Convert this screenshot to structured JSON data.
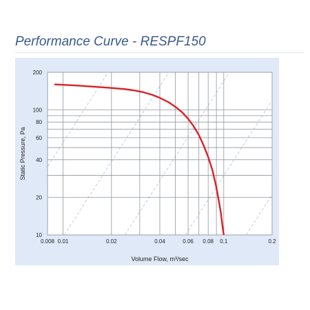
{
  "page": {
    "title": "Performance Curve - RESPF150"
  },
  "chart_data": {
    "type": "line",
    "title": "",
    "xlabel": "Volume Flow, m³/sec",
    "ylabel": "Static Pressure, Pa",
    "xscale": "log",
    "yscale": "log",
    "xlim": [
      0.008,
      0.2
    ],
    "ylim": [
      10,
      200
    ],
    "grid": true,
    "legend": "none",
    "x_ticks": [
      0.008,
      0.01,
      0.02,
      0.04,
      0.06,
      0.08,
      0.1,
      0.2
    ],
    "x_tick_labels": [
      "0.008",
      "0.01",
      "0.02",
      "0.04",
      "0.06",
      "0.08",
      "0.1",
      "0.2"
    ],
    "y_ticks": [
      10,
      20,
      40,
      60,
      80,
      100,
      200
    ],
    "y_tick_labels": [
      "10",
      "20",
      "40",
      "60",
      "80",
      "100",
      "200"
    ],
    "x_minor_grid": [
      0.03,
      0.05,
      0.07,
      0.09
    ],
    "y_minor_grid": [
      30,
      50,
      70,
      90
    ],
    "series": [
      {
        "color": "#dd1f26",
        "x": [
          0.0089,
          0.012,
          0.016,
          0.02,
          0.024,
          0.028,
          0.032,
          0.036,
          0.04,
          0.045,
          0.05,
          0.055,
          0.06,
          0.065,
          0.07,
          0.075,
          0.08,
          0.085,
          0.09,
          0.093,
          0.096,
          0.098,
          0.1
        ],
        "y": [
          160,
          157,
          153,
          150,
          147,
          143,
          138,
          132,
          125,
          116,
          106,
          96,
          85,
          74,
          63,
          52,
          42,
          33,
          24,
          19,
          15,
          12,
          10
        ]
      }
    ],
    "reference_lines": {
      "style": "dashed",
      "color": "#b9bfc8",
      "count": 6
    }
  }
}
